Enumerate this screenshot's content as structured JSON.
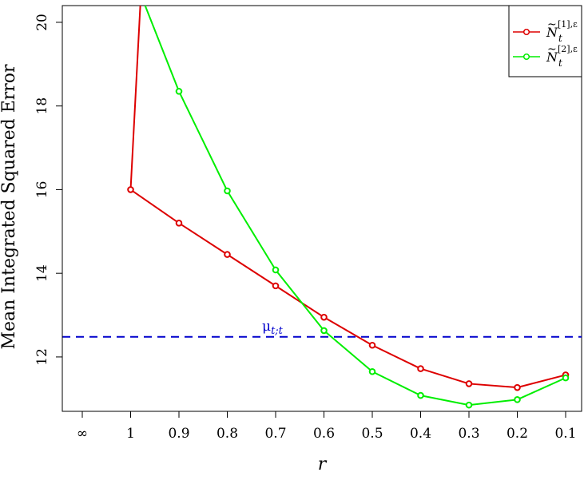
{
  "chart_data": {
    "type": "line",
    "title": "",
    "xlabel": "r",
    "ylabel": "Mean Integrated Squared Error",
    "x_tick_labels": [
      "∞",
      "1",
      "0.9",
      "0.8",
      "0.7",
      "0.6",
      "0.5",
      "0.4",
      "0.3",
      "0.2",
      "0.1"
    ],
    "y_ticks": [
      12,
      14,
      16,
      18,
      20
    ],
    "ylim": [
      10.7,
      20.4
    ],
    "grid": false,
    "legend_position": "top-right",
    "series": [
      {
        "name": "Ñ_t^[1],ε",
        "legend_base": "N",
        "legend_sup": "[1],ε",
        "legend_sub": "t",
        "color": "#dd0000",
        "x": [
          "1",
          "0.9",
          "0.8",
          "0.7",
          "0.6",
          "0.5",
          "0.4",
          "0.3",
          "0.2",
          "0.1"
        ],
        "values": [
          16.0,
          15.2,
          14.45,
          13.7,
          12.95,
          12.28,
          11.72,
          11.36,
          11.27,
          11.57
        ],
        "line_from_above_at": 0.98
      },
      {
        "name": "Ñ_t^[2],ε",
        "legend_base": "N",
        "legend_sup": "[2],ε",
        "legend_sub": "t",
        "color": "#00ee00",
        "x": [
          "1",
          "0.9",
          "0.8",
          "0.7",
          "0.6",
          "0.5",
          "0.4",
          "0.3",
          "0.2",
          "0.1"
        ],
        "values": [
          null,
          18.35,
          15.97,
          14.08,
          12.63,
          11.65,
          11.08,
          10.85,
          10.98,
          11.5
        ],
        "line_from_above_at": 0.97
      }
    ],
    "reference_line": {
      "label_base": "μ",
      "label_sub": "t;t",
      "value": 12.48,
      "color": "#0000cc",
      "style": "dashed"
    }
  }
}
